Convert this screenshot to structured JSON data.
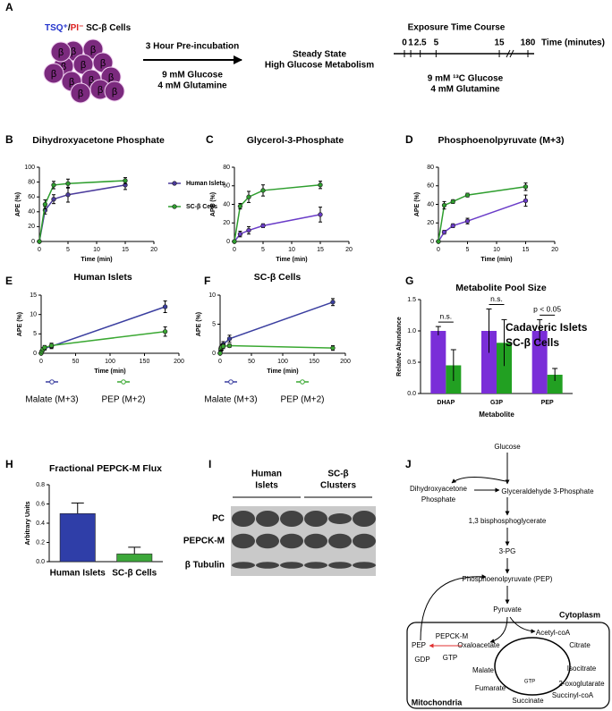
{
  "panel_a": {
    "label": "A",
    "cells_label": [
      {
        "text": "TSQ⁺",
        "color": "#2233cc"
      },
      {
        "text": "/",
        "color": "#000000"
      },
      {
        "text": "PI⁻",
        "color": "#dd2222"
      },
      {
        "text": " SC-β Cells",
        "color": "#000000"
      }
    ],
    "cell_letter": "β",
    "preincubation": {
      "title": "3 Hour Pre-incubation",
      "media": [
        "9 mM Glucose",
        "4 mM Glutamine"
      ]
    },
    "steady_state": [
      "Steady State",
      "High Glucose Metabolism"
    ],
    "time_course": {
      "title": "Exposure Time Course",
      "ticks": [
        0,
        1,
        2.5,
        5,
        15,
        180
      ],
      "axis_label": "Time (minutes)",
      "media": [
        "9 mM ¹³C Glucose",
        "4 mM Glutamine"
      ]
    }
  },
  "chart_data": [
    {
      "panel_label": "B",
      "type": "line",
      "title": "Dihydroxyacetone Phosphate",
      "xlabel": "Time (min)",
      "ylabel": "APE (%)",
      "x": [
        0,
        1,
        2.5,
        5,
        15
      ],
      "xlim": [
        0,
        20
      ],
      "xticks": [
        0,
        5,
        10,
        15,
        20
      ],
      "ylim": [
        0,
        100
      ],
      "yticks": [
        0,
        20,
        40,
        60,
        80,
        100
      ],
      "legend": "right",
      "series": [
        {
          "name": "Human Islets",
          "color": "#4b3b9c",
          "values": [
            0,
            42,
            57,
            63,
            76
          ],
          "errors": [
            0,
            5,
            6,
            10,
            6
          ]
        },
        {
          "name": "SC-β Cells",
          "color": "#2e9e2e",
          "values": [
            0,
            50,
            76,
            78,
            82
          ],
          "errors": [
            0,
            6,
            5,
            6,
            4
          ]
        }
      ]
    },
    {
      "panel_label": "C",
      "type": "line",
      "title": "Glycerol-3-Phosphate",
      "xlabel": "Time (min)",
      "ylabel": "APE (%)",
      "x": [
        0,
        1,
        2.5,
        5,
        15
      ],
      "xlim": [
        0,
        20
      ],
      "xticks": [
        0,
        5,
        10,
        15,
        20
      ],
      "ylim": [
        0,
        80
      ],
      "yticks": [
        0,
        20,
        40,
        60,
        80
      ],
      "series": [
        {
          "color": "#6a3cc8",
          "values": [
            0,
            8,
            12,
            17,
            29
          ],
          "errors": [
            0,
            3,
            4,
            2,
            8
          ]
        },
        {
          "color": "#2e9e2e",
          "values": [
            0,
            38,
            48,
            55,
            61
          ],
          "errors": [
            0,
            3,
            6,
            6,
            4
          ]
        }
      ]
    },
    {
      "panel_label": "D",
      "type": "line",
      "title": "Phosphoenolpyruvate (M+3)",
      "xlabel": "Time (min)",
      "ylabel": "APE (%)",
      "x": [
        0,
        1,
        2.5,
        5,
        15
      ],
      "xlim": [
        0,
        20
      ],
      "xticks": [
        0,
        5,
        10,
        15,
        20
      ],
      "ylim": [
        0,
        80
      ],
      "yticks": [
        0,
        20,
        40,
        60,
        80
      ],
      "series": [
        {
          "color": "#6a3cc8",
          "values": [
            0,
            10,
            17,
            22,
            44
          ],
          "errors": [
            0,
            2,
            2,
            3,
            6
          ]
        },
        {
          "color": "#2e9e2e",
          "values": [
            0,
            39,
            43,
            50,
            59
          ],
          "errors": [
            0,
            4,
            2,
            2,
            4
          ]
        }
      ]
    },
    {
      "panel_label": "E",
      "type": "line",
      "title": "Human Islets",
      "xlabel": "Time (min)",
      "ylabel": "APE (%)",
      "x": [
        0,
        1,
        2.5,
        5,
        15,
        180
      ],
      "xlim": [
        0,
        200
      ],
      "xticks": [
        0,
        50,
        100,
        150,
        200
      ],
      "ylim": [
        0,
        15
      ],
      "yticks": [
        0,
        5,
        10,
        15
      ],
      "legend": "bottom",
      "series": [
        {
          "name": "Malate (M+3)",
          "color": "#3b3fa0",
          "values": [
            0,
            0.5,
            1,
            1.3,
            1.8,
            12
          ],
          "errors": [
            0,
            0.3,
            0.4,
            0.5,
            0.6,
            1.5
          ]
        },
        {
          "name": "PEP (M+2)",
          "color": "#3aa832",
          "values": [
            0,
            0.5,
            1,
            1.5,
            2,
            5.6
          ],
          "errors": [
            0,
            0.3,
            0.4,
            0.5,
            0.6,
            1.2
          ]
        }
      ]
    },
    {
      "panel_label": "F",
      "type": "line",
      "title": "SC-β Cells",
      "xlabel": "Time (min)",
      "ylabel": "APE (%)",
      "x": [
        0,
        1,
        2.5,
        5,
        15,
        180
      ],
      "xlim": [
        0,
        200
      ],
      "xticks": [
        0,
        50,
        100,
        150,
        200
      ],
      "ylim": [
        0,
        10
      ],
      "yticks": [
        0,
        5,
        10
      ],
      "legend": "bottom",
      "series": [
        {
          "name": "Malate (M+3)",
          "color": "#3b3fa0",
          "values": [
            0,
            0.5,
            1,
            1.5,
            2.5,
            8.8
          ],
          "errors": [
            0,
            0.4,
            0.5,
            0.5,
            0.6,
            0.6
          ]
        },
        {
          "name": "PEP (M+2)",
          "color": "#3aa832",
          "values": [
            0,
            0.8,
            1,
            1.2,
            1.3,
            0.9
          ],
          "errors": [
            0,
            0.4,
            0.5,
            0.4,
            0.3,
            0.4
          ]
        }
      ]
    },
    {
      "panel_label": "G",
      "type": "grouped_bar",
      "title": "Metabolite Pool Size",
      "xlabel": "Metabolite",
      "ylabel": "Relative Abundance",
      "categories": [
        "DHAP",
        "G3P",
        "PEP"
      ],
      "ylim": [
        0,
        1.5
      ],
      "yticks": [
        {
          "value": 0,
          "label": "0.0"
        },
        0.5,
        {
          "value": 1,
          "label": "1.0"
        },
        1.5
      ],
      "legend": "upper right",
      "annotations": [
        "n.s.",
        "n.s.",
        "p < 0.05"
      ],
      "series": [
        {
          "name": "Cadaveric Islets",
          "color": "#7a2ed8",
          "values": [
            1,
            1,
            1
          ],
          "errors": [
            0.07,
            0.35,
            0.18
          ]
        },
        {
          "name": "SC-β Cells",
          "color": "#22a022",
          "values": [
            0.45,
            0.81,
            0.3
          ],
          "errors": [
            0.25,
            0.37,
            0.1
          ]
        }
      ]
    },
    {
      "panel_label": "H",
      "type": "bar",
      "title": "Fractional PEPCK-M Flux",
      "ylabel": "Arbitrary Units",
      "categories": [
        "Human Islets",
        "SC-β Cells"
      ],
      "values": [
        0.5,
        0.08
      ],
      "errors": [
        0.11,
        0.07
      ],
      "colors": [
        "#2f3ea8",
        "#3da83a"
      ],
      "ylim": [
        0,
        0.8
      ],
      "yticks": [
        {
          "value": 0,
          "label": "0.0"
        },
        0.2,
        0.4,
        0.6,
        0.8
      ]
    }
  ],
  "blot": {
    "label": "I",
    "groups": [
      [
        "Human",
        "Islets"
      ],
      [
        "SC-β",
        "Clusters"
      ]
    ],
    "rows": [
      "PC",
      "PEPCK-M",
      "β Tubulin"
    ]
  },
  "pathway": {
    "label": "J",
    "nodes": [
      {
        "text": "Glucose"
      },
      {
        "text": [
          "Dihydroxyacetone",
          "Phosphate"
        ]
      },
      {
        "text": "Glyceraldehyde 3-Phosphate"
      },
      {
        "text": "1,3 bisphosphoglycerate"
      },
      {
        "text": "3-PG"
      },
      {
        "text": "Phosphoenolpyruvate (PEP)",
        "color": "#e03030"
      },
      {
        "text": "Pyruvate"
      },
      {
        "text": "Cytoplasm",
        "bold": true
      },
      {
        "text": "PEPCK-M"
      },
      {
        "text": "PEP",
        "color": "#e03030"
      },
      {
        "text": "Oxaloacetate"
      },
      {
        "text": "GDP"
      },
      {
        "text": "GTP",
        "color": "#e03030"
      },
      {
        "text": "Acetyl-coA"
      },
      {
        "text": "Citrate"
      },
      {
        "text": "Isocitrate"
      },
      {
        "text": "2-oxoglutarate"
      },
      {
        "text": "Succinyl-coA"
      },
      {
        "text": "Succinate"
      },
      {
        "text": "Fumarate"
      },
      {
        "text": "Malate"
      },
      {
        "text": "GTP",
        "color": "#e03030"
      },
      {
        "text": "Mitochondria",
        "bold": true
      }
    ]
  }
}
